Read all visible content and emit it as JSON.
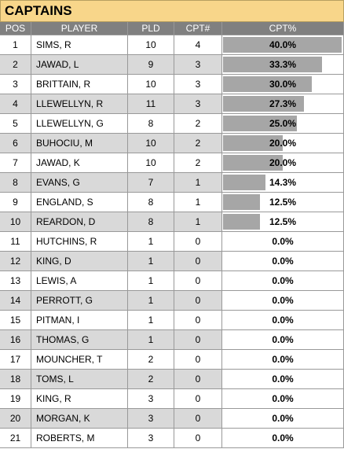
{
  "header": {
    "title": "CAPTAINS"
  },
  "table": {
    "columns": [
      "POS",
      "PLAYER",
      "PLD",
      "CPT#",
      "CPT%"
    ],
    "rows": [
      [
        1,
        "SIMS, R",
        10,
        4,
        {
          "value": 40.0,
          "label": "40.0%"
        }
      ],
      [
        2,
        "JAWAD, L",
        9,
        3,
        {
          "value": 33.3,
          "label": "33.3%"
        }
      ],
      [
        3,
        "BRITTAIN, R",
        10,
        3,
        {
          "value": 30.0,
          "label": "30.0%"
        }
      ],
      [
        4,
        "LLEWELLYN, R",
        11,
        3,
        {
          "value": 27.3,
          "label": "27.3%"
        }
      ],
      [
        5,
        "LLEWELLYN, G",
        8,
        2,
        {
          "value": 25.0,
          "label": "25.0%"
        }
      ],
      [
        6,
        "BUHOCIU, M",
        10,
        2,
        {
          "value": 20.0,
          "label": "20.0%"
        }
      ],
      [
        7,
        "JAWAD, K",
        10,
        2,
        {
          "value": 20.0,
          "label": "20.0%"
        }
      ],
      [
        8,
        "EVANS, G",
        7,
        1,
        {
          "value": 14.3,
          "label": "14.3%"
        }
      ],
      [
        9,
        "ENGLAND, S",
        8,
        1,
        {
          "value": 12.5,
          "label": "12.5%"
        }
      ],
      [
        10,
        "REARDON, D",
        8,
        1,
        {
          "value": 12.5,
          "label": "12.5%"
        }
      ],
      [
        11,
        "HUTCHINS, R",
        1,
        0,
        {
          "value": 0,
          "label": "0.0%"
        }
      ],
      [
        12,
        "KING, D",
        1,
        0,
        {
          "value": 0,
          "label": "0.0%"
        }
      ],
      [
        13,
        "LEWIS, A",
        1,
        0,
        {
          "value": 0,
          "label": "0.0%"
        }
      ],
      [
        14,
        "PERROTT, G",
        1,
        0,
        {
          "value": 0,
          "label": "0.0%"
        }
      ],
      [
        15,
        "PITMAN, I",
        1,
        0,
        {
          "value": 0,
          "label": "0.0%"
        }
      ],
      [
        16,
        "THOMAS, G",
        1,
        0,
        {
          "value": 0,
          "label": "0.0%"
        }
      ],
      [
        17,
        "MOUNCHER, T",
        2,
        0,
        {
          "value": 0,
          "label": "0.0%"
        }
      ],
      [
        18,
        "TOMS, L",
        2,
        0,
        {
          "value": 0,
          "label": "0.0%"
        }
      ],
      [
        19,
        "KING, R",
        3,
        0,
        {
          "value": 0,
          "label": "0.0%"
        }
      ],
      [
        20,
        "MORGAN, K",
        3,
        0,
        {
          "value": 0,
          "label": "0.0%"
        }
      ],
      [
        21,
        "ROBERTS, M",
        3,
        0,
        {
          "value": 0,
          "label": "0.0%"
        }
      ]
    ]
  }
}
